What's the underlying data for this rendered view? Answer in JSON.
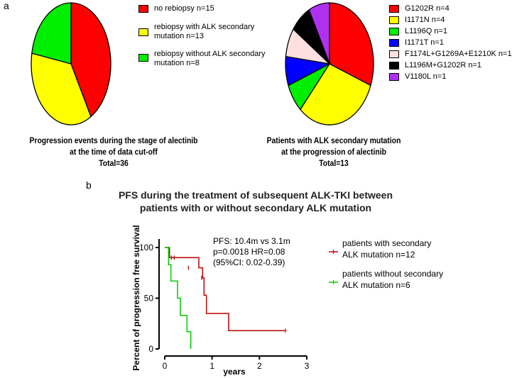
{
  "panels": {
    "a": "a",
    "b": "b"
  },
  "chart_data": [
    {
      "type": "pie",
      "categories": [
        "no rebiopsy n=15",
        "rebiopsy with ALK secondary mutation n=13",
        "rebiopsy without ALK secondary mutation n=8"
      ],
      "legend_lines": [
        [
          "no rebiopsy n=15"
        ],
        [
          "rebiopsy with ALK secondary",
          "mutation n=13"
        ],
        [
          "rebiopsy without ALK secondary",
          "mutation n=8"
        ]
      ],
      "values": [
        15,
        13,
        8
      ],
      "colors": [
        "#ff0000",
        "#ffff00",
        "#00ee00"
      ],
      "title_lines": [
        "Progression events during the stage of alectinib",
        "at the time of data cut-off",
        "Total=36"
      ]
    },
    {
      "type": "pie",
      "categories": [
        "G1202R n=4",
        "I1171N n=4",
        "L1196Q n=1",
        "I1171T n=1",
        "F1174L+G1269A+E1210K n=1",
        "L1196M+G1202R n=1",
        "V1180L n=1"
      ],
      "values": [
        4,
        4,
        1,
        1,
        1,
        1,
        1
      ],
      "colors": [
        "#ff0000",
        "#ffff00",
        "#00ee00",
        "#0000ff",
        "#ffe0e0",
        "#000000",
        "#b030f0"
      ],
      "title_lines": [
        "Patients with ALK secondary mutation",
        "at the progression of alectinib",
        "Total=13"
      ]
    },
    {
      "type": "line",
      "title_lines": [
        "PFS during the treatment of subsequent ALK-TKI between",
        "patients with or without secondary ALK mutation"
      ],
      "xlabel": "years",
      "ylabel": "Percent of progression free survival",
      "xlim": [
        0,
        3
      ],
      "ylim": [
        0,
        100
      ],
      "xticks": [
        0,
        1,
        2,
        3
      ],
      "yticks": [
        0,
        50,
        100
      ],
      "annotation": [
        "PFS: 10.4m vs 3.1m",
        "p=0.0018 HR=0.08",
        "(95%CI: 0.02-0.39)"
      ],
      "series": [
        {
          "name": "patients with secondary ALK mutation n=12",
          "legend_lines": [
            "patients with secondary",
            "ALK mutation n=12"
          ],
          "color": "#c00000",
          "steps": [
            [
              0,
              100
            ],
            [
              0.1,
              90
            ],
            [
              0.72,
              80
            ],
            [
              0.8,
              70
            ],
            [
              0.83,
              53
            ],
            [
              0.88,
              35
            ],
            [
              1.35,
              18
            ],
            [
              2.55,
              18
            ]
          ],
          "censors": [
            [
              0.14,
              90
            ],
            [
              0.2,
              90
            ],
            [
              0.5,
              80
            ],
            [
              0.78,
              70
            ],
            [
              2.55,
              18
            ]
          ]
        },
        {
          "name": "patients without secondary ALK mutation n=6",
          "legend_lines": [
            "patients without secondary",
            "ALK mutation n=6"
          ],
          "color": "#00cc00",
          "steps": [
            [
              0,
              100
            ],
            [
              0.08,
              83
            ],
            [
              0.13,
              67
            ],
            [
              0.27,
              50
            ],
            [
              0.33,
              33
            ],
            [
              0.47,
              17
            ],
            [
              0.55,
              0
            ]
          ],
          "censors": []
        }
      ]
    }
  ]
}
